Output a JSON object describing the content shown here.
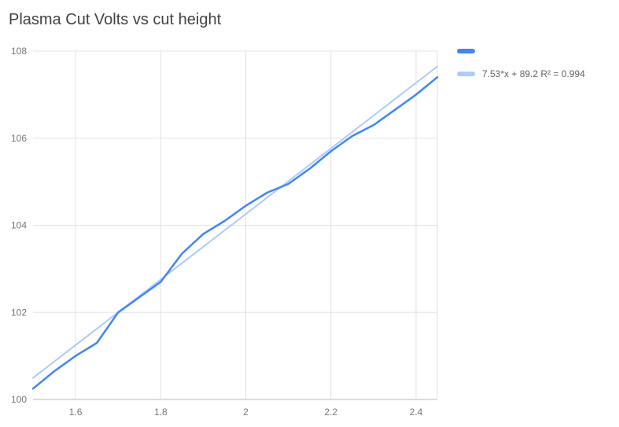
{
  "title": "Plasma Cut Volts vs cut height",
  "chart_data": {
    "type": "line",
    "title": "Plasma Cut Volts vs cut height",
    "xlabel": "",
    "ylabel": "",
    "xlim": [
      1.5,
      2.45
    ],
    "ylim": [
      100,
      108
    ],
    "x_ticks": [
      1.6,
      1.8,
      2.0,
      2.2,
      2.4
    ],
    "x_tick_labels": [
      "1.6",
      "1.8",
      "2",
      "2.2",
      "2.4"
    ],
    "y_ticks": [
      100,
      102,
      104,
      106,
      108
    ],
    "y_tick_labels": [
      "100",
      "102",
      "104",
      "106",
      "108"
    ],
    "grid": true,
    "legend_position": "top-right",
    "series": [
      {
        "name": "",
        "color": "#4285f4",
        "x": [
          1.5,
          1.55,
          1.6,
          1.65,
          1.7,
          1.75,
          1.8,
          1.85,
          1.9,
          1.95,
          2.0,
          2.05,
          2.1,
          2.15,
          2.2,
          2.25,
          2.3,
          2.35,
          2.4,
          2.45
        ],
        "y": [
          100.25,
          100.65,
          101.0,
          101.3,
          102.0,
          102.35,
          102.7,
          103.35,
          103.8,
          104.1,
          104.45,
          104.75,
          104.95,
          105.3,
          105.7,
          106.05,
          106.3,
          106.65,
          107.0,
          107.4
        ]
      }
    ],
    "trendline": {
      "label": "7.53*x + 89.2 R² = 0.994",
      "equation": "7.53*x + 89.2",
      "slope": 7.53,
      "intercept": 89.2,
      "r_squared": 0.994,
      "color": "#aecbfa"
    }
  },
  "legend": {
    "series_label": "",
    "trendline_label": "7.53*x + 89.2 R² = 0.994"
  },
  "colors": {
    "series": "#4285f4",
    "trendline": "#aecbfa",
    "axis_text": "#757575",
    "grid": "#e3e3e3",
    "axis_line": "#b7b7b7"
  }
}
